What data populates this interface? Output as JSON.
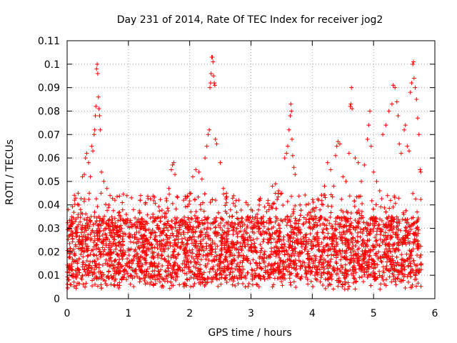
{
  "chart_data": {
    "type": "scatter",
    "title": "Day 231 of 2014, Rate Of TEC Index for receiver jog2",
    "xlabel": "GPS time / hours",
    "ylabel": "ROTI / TECUs",
    "xlim": [
      0,
      6
    ],
    "ylim": [
      0,
      0.11
    ],
    "xticks": [
      "0",
      "1",
      "2",
      "3",
      "4",
      "5",
      "6"
    ],
    "yticks": [
      "0",
      "0.01",
      "0.02",
      "0.03",
      "0.04",
      "0.05",
      "0.06",
      "0.07",
      "0.08",
      "0.09",
      "0.1",
      "0.11"
    ],
    "grid": true,
    "marker": "+",
    "color": "#ff0000",
    "series": [
      {
        "name": "ROTI",
        "x_range": [
          0,
          5.78
        ],
        "points": [
          [
            0.02,
            0.038
          ],
          [
            0.03,
            0.008
          ],
          [
            0.05,
            0.006
          ],
          [
            0.08,
            0.033
          ],
          [
            0.12,
            0.042
          ],
          [
            0.15,
            0.03
          ],
          [
            0.18,
            0.045
          ],
          [
            0.22,
            0.038
          ],
          [
            0.25,
            0.052
          ],
          [
            0.28,
            0.053
          ],
          [
            0.3,
            0.06
          ],
          [
            0.32,
            0.062
          ],
          [
            0.35,
            0.058
          ],
          [
            0.38,
            0.052
          ],
          [
            0.4,
            0.065
          ],
          [
            0.42,
            0.063
          ],
          [
            0.44,
            0.07
          ],
          [
            0.45,
            0.072
          ],
          [
            0.46,
            0.078
          ],
          [
            0.47,
            0.082
          ],
          [
            0.48,
            0.098
          ],
          [
            0.49,
            0.1
          ],
          [
            0.5,
            0.096
          ],
          [
            0.51,
            0.086
          ],
          [
            0.52,
            0.081
          ],
          [
            0.53,
            0.078
          ],
          [
            0.54,
            0.072
          ],
          [
            0.56,
            0.054
          ],
          [
            0.6,
            0.05
          ],
          [
            0.65,
            0.047
          ],
          [
            0.7,
            0.044
          ],
          [
            0.78,
            0.042
          ],
          [
            0.9,
            0.041
          ],
          [
            1.05,
            0.043
          ],
          [
            1.2,
            0.044
          ],
          [
            1.28,
            0.041
          ],
          [
            1.4,
            0.036
          ],
          [
            1.55,
            0.035
          ],
          [
            1.7,
            0.055
          ],
          [
            1.72,
            0.057
          ],
          [
            1.74,
            0.058
          ],
          [
            1.76,
            0.053
          ],
          [
            1.66,
            0.047
          ],
          [
            1.9,
            0.042
          ],
          [
            2.0,
            0.045
          ],
          [
            2.05,
            0.052
          ],
          [
            2.1,
            0.055
          ],
          [
            2.15,
            0.054
          ],
          [
            2.2,
            0.051
          ],
          [
            2.25,
            0.06
          ],
          [
            2.28,
            0.065
          ],
          [
            2.3,
            0.07
          ],
          [
            2.32,
            0.072
          ],
          [
            2.33,
            0.09
          ],
          [
            2.34,
            0.092
          ],
          [
            2.35,
            0.096
          ],
          [
            2.36,
            0.103
          ],
          [
            2.37,
            0.103
          ],
          [
            2.38,
            0.101
          ],
          [
            2.39,
            0.095
          ],
          [
            2.4,
            0.092
          ],
          [
            2.41,
            0.091
          ],
          [
            2.42,
            0.068
          ],
          [
            2.44,
            0.066
          ],
          [
            2.5,
            0.058
          ],
          [
            2.55,
            0.047
          ],
          [
            2.6,
            0.045
          ],
          [
            2.8,
            0.042
          ],
          [
            2.95,
            0.04
          ],
          [
            3.0,
            0.038
          ],
          [
            3.1,
            0.036
          ],
          [
            3.2,
            0.035
          ],
          [
            3.3,
            0.034
          ],
          [
            3.35,
            0.048
          ],
          [
            3.4,
            0.049
          ],
          [
            3.45,
            0.046
          ],
          [
            3.5,
            0.045
          ],
          [
            3.55,
            0.06
          ],
          [
            3.58,
            0.062
          ],
          [
            3.6,
            0.065
          ],
          [
            3.62,
            0.072
          ],
          [
            3.64,
            0.078
          ],
          [
            3.65,
            0.083
          ],
          [
            3.66,
            0.08
          ],
          [
            3.67,
            0.068
          ],
          [
            3.68,
            0.061
          ],
          [
            3.7,
            0.056
          ],
          [
            3.72,
            0.053
          ],
          [
            3.8,
            0.04
          ],
          [
            3.9,
            0.04
          ],
          [
            4.0,
            0.038
          ],
          [
            4.1,
            0.042
          ],
          [
            4.2,
            0.048
          ],
          [
            4.25,
            0.058
          ],
          [
            4.3,
            0.055
          ],
          [
            4.35,
            0.048
          ],
          [
            4.38,
            0.061
          ],
          [
            4.4,
            0.065
          ],
          [
            4.42,
            0.067
          ],
          [
            4.45,
            0.066
          ],
          [
            4.5,
            0.052
          ],
          [
            4.55,
            0.05
          ],
          [
            4.6,
            0.062
          ],
          [
            4.62,
            0.082
          ],
          [
            4.63,
            0.083
          ],
          [
            4.64,
            0.09
          ],
          [
            4.65,
            0.081
          ],
          [
            4.7,
            0.06
          ],
          [
            4.75,
            0.058
          ],
          [
            4.8,
            0.05
          ],
          [
            4.85,
            0.057
          ],
          [
            4.9,
            0.068
          ],
          [
            4.92,
            0.074
          ],
          [
            4.94,
            0.08
          ],
          [
            4.96,
            0.065
          ],
          [
            5.0,
            0.054
          ],
          [
            5.05,
            0.05
          ],
          [
            5.1,
            0.046
          ],
          [
            5.15,
            0.07
          ],
          [
            5.2,
            0.074
          ],
          [
            5.25,
            0.08
          ],
          [
            5.3,
            0.083
          ],
          [
            5.32,
            0.091
          ],
          [
            5.35,
            0.09
          ],
          [
            5.38,
            0.084
          ],
          [
            5.4,
            0.078
          ],
          [
            5.42,
            0.066
          ],
          [
            5.45,
            0.062
          ],
          [
            5.5,
            0.072
          ],
          [
            5.52,
            0.074
          ],
          [
            5.55,
            0.065
          ],
          [
            5.58,
            0.063
          ],
          [
            5.6,
            0.088
          ],
          [
            5.62,
            0.092
          ],
          [
            5.64,
            0.1
          ],
          [
            5.65,
            0.101
          ],
          [
            5.66,
            0.094
          ],
          [
            5.68,
            0.09
          ],
          [
            5.7,
            0.085
          ],
          [
            5.72,
            0.077
          ],
          [
            5.74,
            0.07
          ],
          [
            5.76,
            0.055
          ],
          [
            5.77,
            0.054
          ]
        ],
        "band": {
          "description": "dense cluster of points between 0.004 and 0.045 across the full time range",
          "typical_min": 0.005,
          "typical_max": 0.045,
          "dense_min": 0.008,
          "dense_max": 0.035,
          "count": 3600
        }
      }
    ]
  }
}
